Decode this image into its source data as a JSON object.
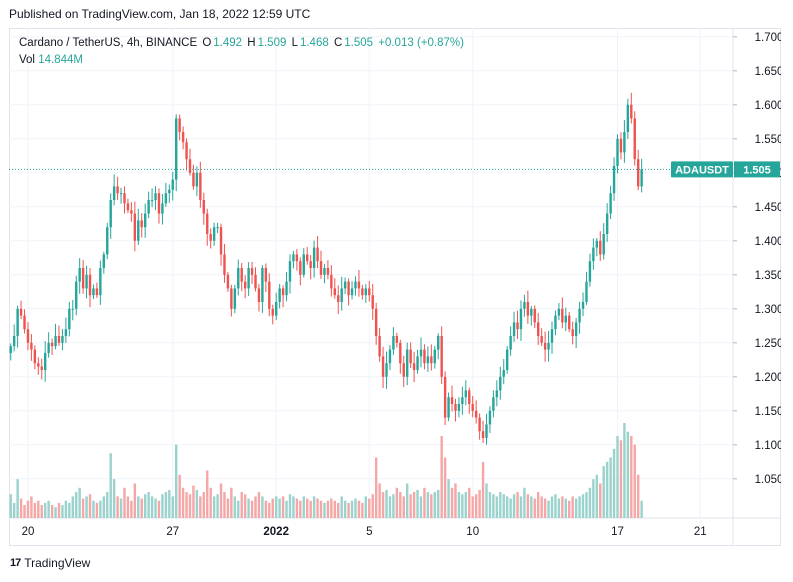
{
  "header": {
    "published": "Published on TradingView.com, Jan 18, 2022 12:59 UTC"
  },
  "legend": {
    "symbol": "Cardano / TetherUS, 4h, BINANCE",
    "o_label": "O",
    "o_value": "1.492",
    "h_label": "H",
    "h_value": "1.509",
    "l_label": "L",
    "l_value": "1.468",
    "c_label": "C",
    "c_value": "1.505",
    "change": "+0.013 (+0.87%)",
    "vol_label": "Vol",
    "vol_value": "14.844M"
  },
  "footer": {
    "brand": "TradingView",
    "logo": "17"
  },
  "colors": {
    "up": "#26a69a",
    "down": "#ef5350",
    "up_vol": "#9ad3cd",
    "down_vol": "#f4a7a6",
    "grid": "#f0f3fa",
    "axis_text": "#131722"
  },
  "chart_data": {
    "type": "candlestick",
    "symbol_badge": "ADAUSDT",
    "last_price": 1.505,
    "ylim": [
      1.01,
      1.71
    ],
    "y_ticks": [
      "1.700",
      "1.650",
      "1.600",
      "1.550",
      "1.500",
      "1.450",
      "1.400",
      "1.350",
      "1.300",
      "1.250",
      "1.200",
      "1.150",
      "1.100",
      "1.050"
    ],
    "x_ticks": [
      {
        "label": "20",
        "bar": 5
      },
      {
        "label": "27",
        "bar": 47
      },
      {
        "label": "2022",
        "bar": 77
      },
      {
        "label": "5",
        "bar": 104
      },
      {
        "label": "10",
        "bar": 134
      },
      {
        "label": "17",
        "bar": 176
      },
      {
        "label": "21",
        "bar": 200
      }
    ],
    "n_slots": 210,
    "closes": [
      1.245,
      1.26,
      1.3,
      1.29,
      1.27,
      1.25,
      1.24,
      1.22,
      1.215,
      1.21,
      1.235,
      1.25,
      1.245,
      1.26,
      1.25,
      1.26,
      1.27,
      1.3,
      1.3,
      1.34,
      1.36,
      1.33,
      1.35,
      1.32,
      1.33,
      1.32,
      1.36,
      1.38,
      1.42,
      1.46,
      1.48,
      1.47,
      1.47,
      1.455,
      1.445,
      1.44,
      1.4,
      1.43,
      1.42,
      1.44,
      1.46,
      1.46,
      1.47,
      1.44,
      1.455,
      1.47,
      1.475,
      1.49,
      1.58,
      1.56,
      1.545,
      1.52,
      1.5,
      1.48,
      1.5,
      1.46,
      1.44,
      1.41,
      1.4,
      1.42,
      1.42,
      1.38,
      1.35,
      1.33,
      1.3,
      1.33,
      1.36,
      1.34,
      1.33,
      1.36,
      1.35,
      1.33,
      1.31,
      1.36,
      1.34,
      1.3,
      1.29,
      1.31,
      1.33,
      1.32,
      1.34,
      1.37,
      1.38,
      1.37,
      1.35,
      1.38,
      1.37,
      1.36,
      1.39,
      1.37,
      1.35,
      1.36,
      1.35,
      1.33,
      1.32,
      1.31,
      1.33,
      1.34,
      1.32,
      1.33,
      1.34,
      1.33,
      1.32,
      1.33,
      1.32,
      1.3,
      1.26,
      1.23,
      1.2,
      1.22,
      1.24,
      1.26,
      1.25,
      1.22,
      1.2,
      1.24,
      1.22,
      1.21,
      1.23,
      1.24,
      1.22,
      1.23,
      1.22,
      1.24,
      1.26,
      1.2,
      1.14,
      1.17,
      1.16,
      1.15,
      1.16,
      1.17,
      1.18,
      1.16,
      1.15,
      1.14,
      1.12,
      1.11,
      1.13,
      1.15,
      1.17,
      1.18,
      1.2,
      1.21,
      1.24,
      1.26,
      1.28,
      1.27,
      1.3,
      1.31,
      1.29,
      1.3,
      1.28,
      1.26,
      1.25,
      1.24,
      1.25,
      1.27,
      1.29,
      1.3,
      1.28,
      1.29,
      1.27,
      1.26,
      1.28,
      1.3,
      1.31,
      1.34,
      1.37,
      1.39,
      1.4,
      1.38,
      1.41,
      1.44,
      1.47,
      1.51,
      1.55,
      1.53,
      1.56,
      1.6,
      1.58,
      1.52,
      1.48,
      1.505
    ],
    "volumes": [
      0.55,
      0.35,
      0.9,
      0.45,
      0.3,
      0.4,
      0.5,
      0.35,
      0.4,
      0.3,
      0.35,
      0.4,
      0.3,
      0.25,
      0.35,
      0.3,
      0.4,
      0.35,
      0.5,
      0.6,
      0.7,
      0.45,
      0.5,
      0.55,
      0.4,
      0.35,
      0.4,
      0.5,
      0.6,
      1.5,
      0.9,
      0.5,
      0.45,
      0.7,
      0.5,
      0.4,
      0.8,
      0.5,
      0.45,
      0.55,
      0.6,
      0.5,
      0.45,
      0.4,
      0.55,
      0.6,
      0.65,
      0.5,
      1.7,
      1.0,
      0.7,
      0.6,
      0.55,
      0.75,
      0.65,
      0.5,
      0.6,
      1.1,
      0.7,
      0.5,
      0.55,
      0.8,
      0.6,
      0.45,
      0.7,
      0.5,
      0.4,
      0.6,
      0.55,
      0.45,
      0.4,
      0.5,
      0.6,
      0.5,
      0.4,
      0.35,
      0.45,
      0.5,
      0.45,
      0.5,
      0.4,
      0.55,
      0.5,
      0.45,
      0.4,
      0.5,
      0.45,
      0.4,
      0.5,
      0.45,
      0.4,
      0.35,
      0.4,
      0.45,
      0.4,
      0.35,
      0.5,
      0.4,
      0.35,
      0.4,
      0.45,
      0.4,
      0.35,
      0.5,
      0.45,
      0.55,
      1.4,
      0.8,
      0.6,
      0.65,
      0.5,
      0.55,
      0.7,
      0.6,
      0.5,
      0.8,
      0.55,
      0.6,
      0.65,
      0.5,
      0.7,
      0.6,
      0.55,
      0.6,
      0.65,
      1.9,
      1.4,
      0.9,
      0.7,
      0.8,
      0.6,
      0.55,
      0.6,
      0.7,
      0.5,
      0.55,
      0.65,
      1.3,
      0.8,
      0.6,
      0.55,
      0.5,
      0.6,
      0.55,
      0.5,
      0.45,
      0.55,
      0.6,
      0.5,
      0.7,
      0.55,
      0.5,
      0.45,
      0.6,
      0.5,
      0.45,
      0.4,
      0.5,
      0.55,
      0.45,
      0.5,
      0.45,
      0.4,
      0.5,
      0.45,
      0.5,
      0.55,
      0.6,
      0.7,
      0.9,
      1.0,
      0.8,
      1.2,
      1.3,
      1.4,
      1.6,
      1.9,
      1.8,
      2.2,
      2.0,
      1.9,
      1.7,
      1.0,
      0.4
    ]
  }
}
